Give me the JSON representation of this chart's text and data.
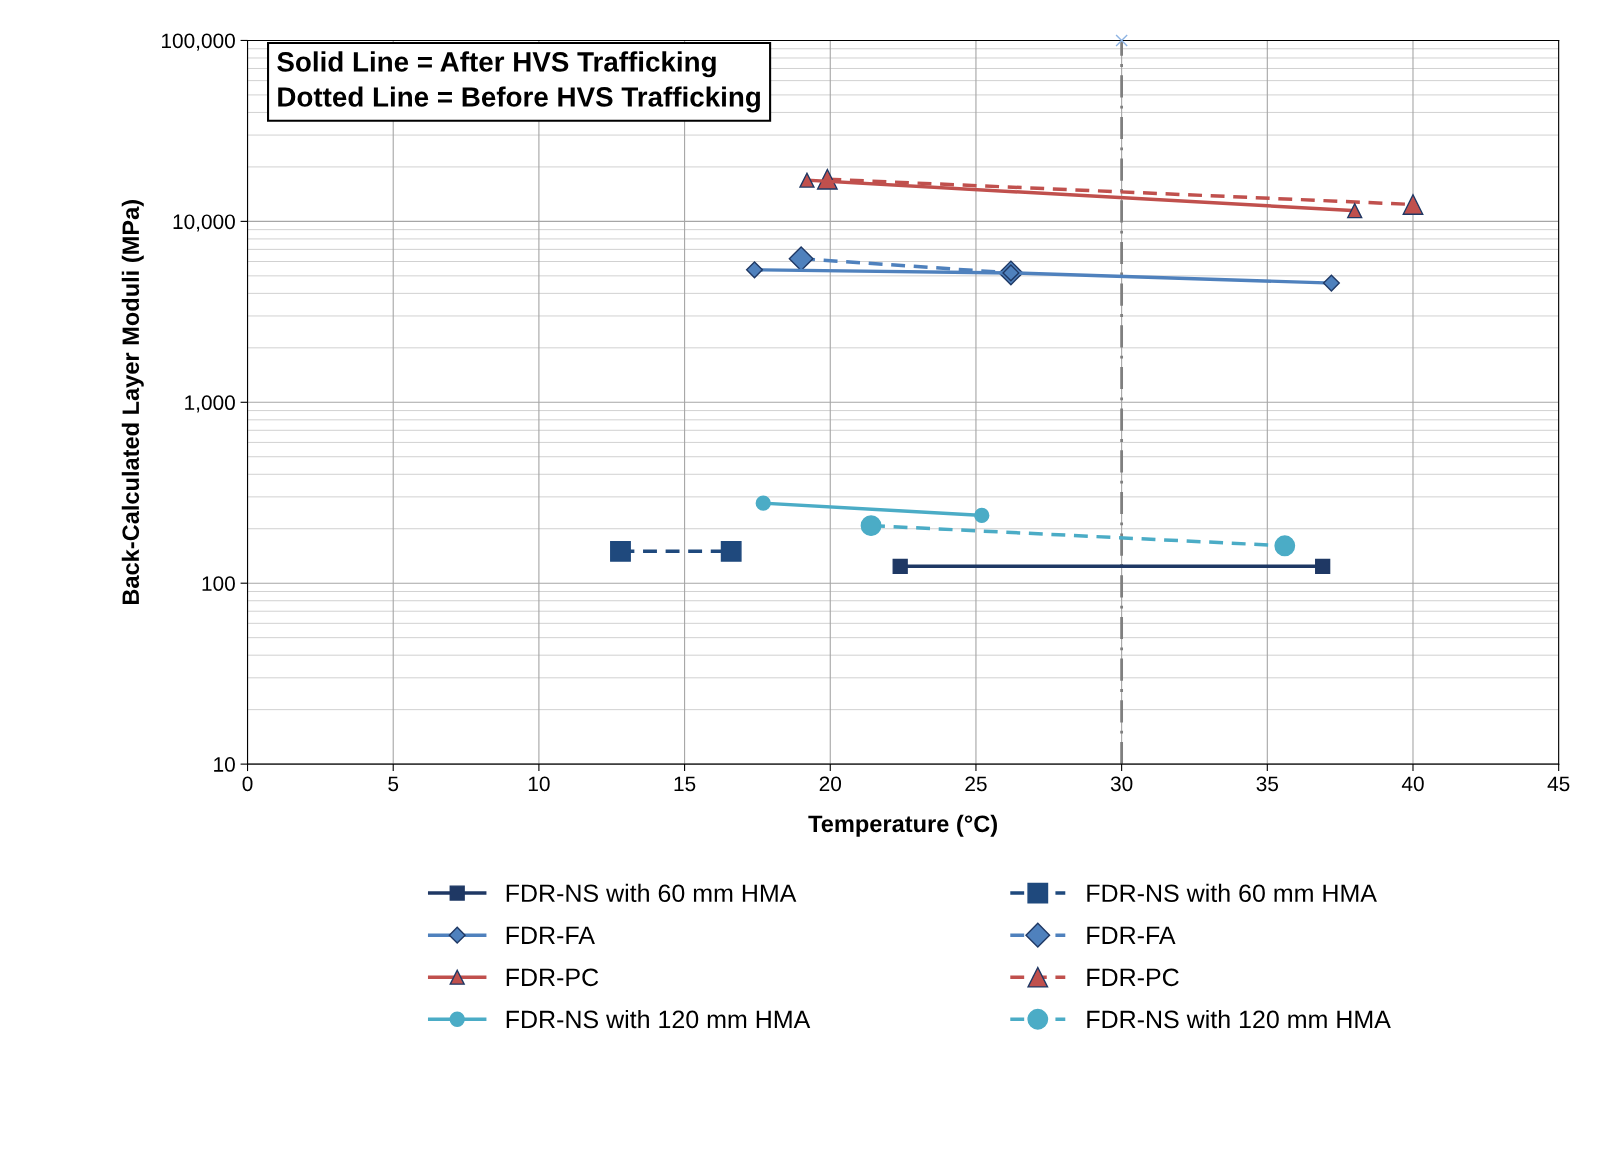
{
  "chart_data": {
    "type": "line",
    "xlabel": "Temperature (°C)",
    "ylabel": "Back-Calculated Layer Moduli (MPa)",
    "annotations": [
      "Solid Line = After HVS Trafficking\nDotted Line = Before HVS Trafficking"
    ],
    "log": "y",
    "xlim": [
      0,
      45
    ],
    "xticks": [
      0,
      5,
      10,
      15,
      20,
      25,
      30,
      35,
      40,
      45
    ],
    "ylim": [
      10,
      100000
    ],
    "yticks": [
      {
        "value": 10,
        "label": "10"
      },
      {
        "value": 100,
        "label": "100"
      },
      {
        "value": 1000,
        "label": "1,000"
      },
      {
        "value": 10000,
        "label": "10,000"
      },
      {
        "value": 100000,
        "label": "100,000"
      }
    ],
    "grid": true,
    "legend": "bottom",
    "ref_lines": [
      {
        "axis": "x",
        "value": 30,
        "color": "#7f7f7f",
        "line_style": "dashdot"
      }
    ],
    "series": [
      {
        "name": "FDR-NS with 60 mm HMA",
        "color": "#1f3864",
        "marker": "square",
        "line_style": "solid",
        "x": [
          22.4,
          36.9
        ],
        "values": [
          124,
          124
        ]
      },
      {
        "name": "FDR-FA",
        "color": "#4f81bd",
        "marker": "diamond",
        "line_style": "solid",
        "x": [
          17.4,
          26.2,
          37.2
        ],
        "values": [
          5400,
          5190,
          4560
        ]
      },
      {
        "name": "FDR-PC",
        "color": "#c0504d",
        "marker": "triangle",
        "line_style": "solid",
        "x": [
          19.2,
          38.0
        ],
        "values": [
          16900,
          11460
        ]
      },
      {
        "name": "FDR-NS with 120 mm HMA",
        "color": "#4bacc6",
        "marker": "circle",
        "line_style": "solid",
        "x": [
          17.7,
          25.2
        ],
        "values": [
          277,
          237
        ]
      },
      {
        "name": "FDR-NS with 60 mm HMA",
        "color": "#1f497d",
        "marker": "square",
        "line_style": "dashed",
        "x": [
          12.8,
          16.6
        ],
        "values": [
          150,
          150
        ]
      },
      {
        "name": "FDR-FA",
        "color": "#4f81bd",
        "marker": "diamond",
        "line_style": "dashed",
        "x": [
          19.0,
          26.2
        ],
        "values": [
          6220,
          5190
        ]
      },
      {
        "name": "FDR-PC",
        "color": "#c0504d",
        "marker": "triangle",
        "line_style": "dashed",
        "x": [
          19.9,
          40.0
        ],
        "values": [
          17100,
          12400
        ]
      },
      {
        "name": "FDR-NS with 120 mm HMA",
        "color": "#4bacc6",
        "marker": "circle",
        "line_style": "dashed",
        "x": [
          21.4,
          35.6
        ],
        "values": [
          208,
          161
        ]
      },
      {
        "type": "scatter",
        "color": "#8eb4e3",
        "marker": "cross",
        "x": [
          30
        ],
        "values": [
          100000
        ]
      }
    ]
  }
}
